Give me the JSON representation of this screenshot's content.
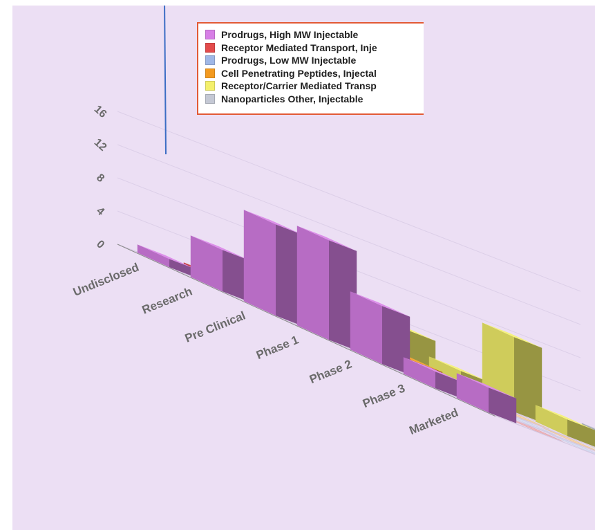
{
  "chart_data": {
    "type": "bar",
    "style": "3d-column",
    "title": "",
    "xlabel": "",
    "ylabel": "",
    "ylim": [
      0,
      16
    ],
    "y_ticks": [
      "0",
      "4",
      "8",
      "12",
      "16"
    ],
    "grid": true,
    "legend_position": "top-center",
    "categories": [
      "Undisclosed",
      "Research",
      "Pre Clinical",
      "Phase 1",
      "Phase 2",
      "Phase 3",
      "Marketed"
    ],
    "series": [
      {
        "name": "Prodrugs, High MW Injectable",
        "color": "#d77fe6",
        "values": [
          1,
          5,
          11,
          12,
          7,
          2,
          3
        ]
      },
      {
        "name": "Receptor Mediated Transport, Inje",
        "color": "#e34b4b",
        "values": [
          1,
          2,
          8,
          2,
          0,
          0,
          0
        ]
      },
      {
        "name": "Prodrugs, Low MW Injectable",
        "color": "#9fb7e6",
        "values": [
          0,
          0,
          1,
          0,
          0,
          0,
          0
        ]
      },
      {
        "name": "Cell Penetrating Peptides, Injectal",
        "color": "#f39a1f",
        "values": [
          0,
          0,
          1,
          0,
          0,
          0,
          0
        ]
      },
      {
        "name": "Receptor/Carrier Mediated Transp",
        "color": "#f4f06b",
        "values": [
          0,
          4,
          2,
          9,
          2,
          0,
          0
        ]
      },
      {
        "name": "Nanoparticles Other, Injectable",
        "color": "#c4c8d4",
        "values": [
          0,
          0,
          0,
          1,
          2,
          0,
          0
        ]
      }
    ]
  }
}
